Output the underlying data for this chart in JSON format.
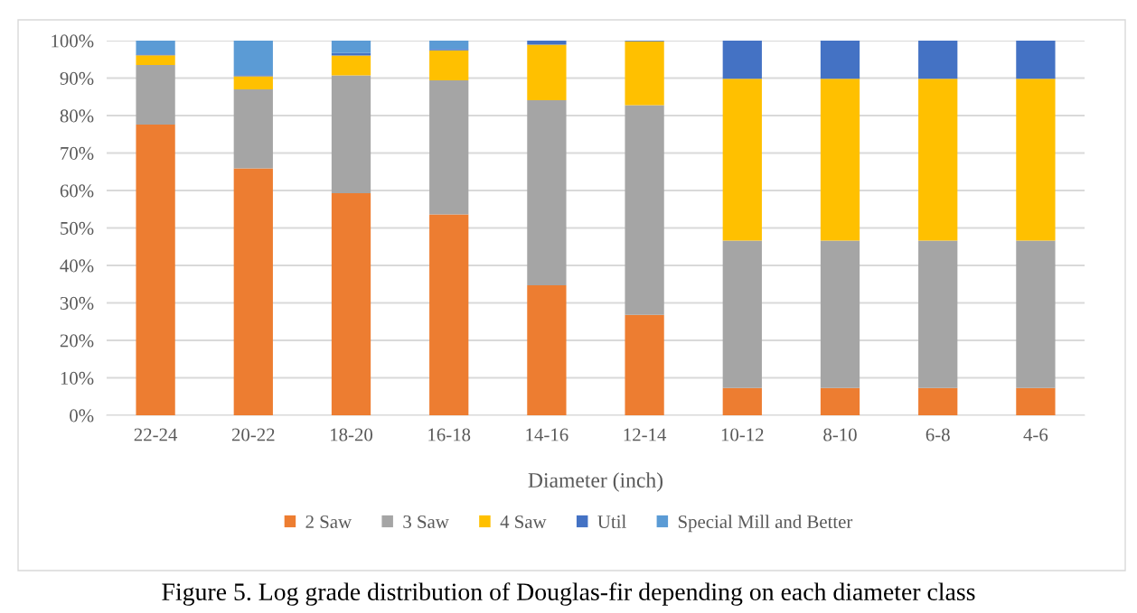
{
  "chart_data": {
    "type": "bar",
    "stacked": true,
    "xlabel": "Diameter (inch)",
    "categories": [
      "22-24",
      "20-22",
      "18-20",
      "16-18",
      "14-16",
      "12-14",
      "10-12",
      "8-10",
      "6-8",
      "4-6"
    ],
    "series": [
      {
        "name": "2 Saw",
        "color": "#ed7d31",
        "values": [
          77.6,
          65.9,
          59.3,
          53.6,
          34.7,
          26.8,
          7.3,
          7.3,
          7.3,
          7.3
        ]
      },
      {
        "name": "3 Saw",
        "color": "#a5a5a5",
        "values": [
          15.9,
          21.1,
          31.4,
          35.8,
          49.4,
          56.0,
          39.3,
          39.3,
          39.3,
          39.3
        ]
      },
      {
        "name": "4 Saw",
        "color": "#ffc000",
        "values": [
          2.6,
          3.5,
          5.3,
          8.0,
          14.8,
          17.0,
          43.2,
          43.2,
          43.2,
          43.2
        ]
      },
      {
        "name": "Util",
        "color": "#4472c4",
        "values": [
          0.2,
          0.3,
          0.7,
          0.4,
          1.1,
          0.2,
          10.2,
          10.2,
          10.2,
          10.2
        ]
      },
      {
        "name": "Special Mill and Better",
        "color": "#5b9bd5",
        "values": [
          3.7,
          9.2,
          3.3,
          2.2,
          null,
          null,
          null,
          null,
          null,
          null
        ]
      }
    ],
    "ylim": [
      0,
      100
    ],
    "yticks": [
      {
        "value": 0,
        "label": "0%"
      },
      {
        "value": 10,
        "label": "10%"
      },
      {
        "value": 20,
        "label": "20%"
      },
      {
        "value": 30,
        "label": "30%"
      },
      {
        "value": 40,
        "label": "40%"
      },
      {
        "value": 50,
        "label": "50%"
      },
      {
        "value": 60,
        "label": "60%"
      },
      {
        "value": 70,
        "label": "70%"
      },
      {
        "value": 80,
        "label": "80%"
      },
      {
        "value": 90,
        "label": "90%"
      },
      {
        "value": 100,
        "label": "100%"
      }
    ],
    "grid": "y",
    "legend": "bottom",
    "annotations": [
      "Figure 5. Log grade distribution of Douglas-fir depending on each diameter class"
    ]
  }
}
